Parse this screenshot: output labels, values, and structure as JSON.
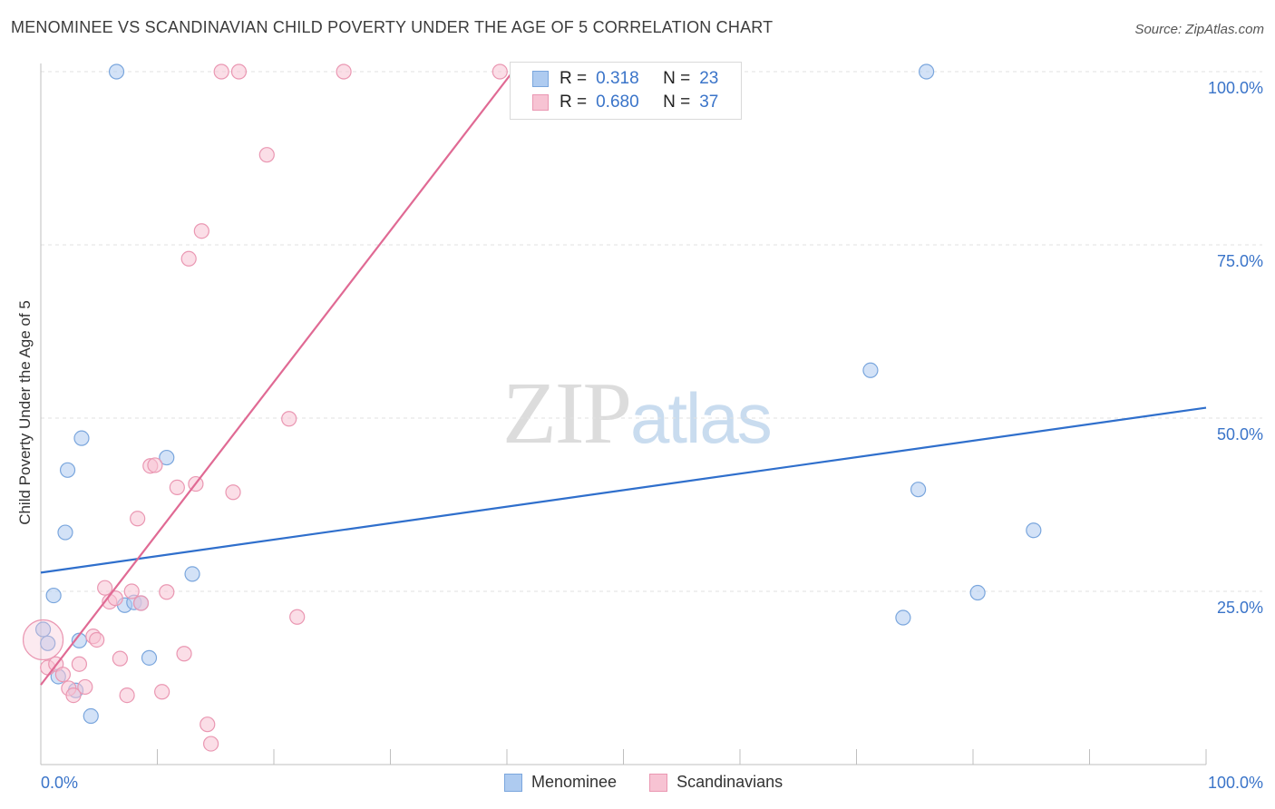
{
  "header": {
    "title": "MENOMINEE VS SCANDINAVIAN CHILD POVERTY UNDER THE AGE OF 5 CORRELATION CHART",
    "source": "Source: ZipAtlas.com"
  },
  "watermark": {
    "zip": "ZIP",
    "atlas": "atlas"
  },
  "legend": {
    "rows": [
      {
        "r_label": "R =",
        "r_value": "0.318",
        "n_label": "N =",
        "n_value": "23"
      },
      {
        "r_label": "R =",
        "r_value": "0.680",
        "n_label": "N =",
        "n_value": "37"
      }
    ],
    "bottom": [
      "Menominee",
      "Scandinavians"
    ]
  },
  "colors": {
    "menominee_fill": "#aecbf0",
    "menominee_stroke": "#7aa6dd",
    "menominee_line": "#2f6fcc",
    "scandinavian_fill": "#f7c3d3",
    "scandinavian_stroke": "#ea97b2",
    "scandinavian_line": "#e06a94",
    "grid": "#e2e2e2",
    "tick_text": "#3a74c9"
  },
  "chart_data": {
    "type": "scatter",
    "title": "MENOMINEE VS SCANDINAVIAN CHILD POVERTY UNDER THE AGE OF 5 CORRELATION CHART",
    "xlabel": "",
    "ylabel": "Child Poverty Under the Age of 5",
    "xlim": [
      0,
      100
    ],
    "ylim": [
      0,
      100
    ],
    "x_tick_labels": [
      "0.0%",
      "100.0%"
    ],
    "y_ticks": [
      25,
      50,
      75,
      100
    ],
    "y_tick_labels": [
      "25.0%",
      "50.0%",
      "75.0%",
      "100.0%"
    ],
    "series": [
      {
        "name": "Menominee",
        "R": 0.318,
        "N": 23,
        "trend": {
          "x": [
            0,
            100
          ],
          "y": [
            27.7,
            51.5
          ]
        },
        "points": [
          {
            "x": 0.2,
            "y": 19.5
          },
          {
            "x": 0.6,
            "y": 17.5
          },
          {
            "x": 1.1,
            "y": 24.4
          },
          {
            "x": 1.5,
            "y": 12.7
          },
          {
            "x": 2.1,
            "y": 33.5
          },
          {
            "x": 2.3,
            "y": 42.5
          },
          {
            "x": 3.0,
            "y": 10.7
          },
          {
            "x": 3.3,
            "y": 17.9
          },
          {
            "x": 3.5,
            "y": 47.1
          },
          {
            "x": 4.3,
            "y": 7.0
          },
          {
            "x": 6.5,
            "y": 100
          },
          {
            "x": 7.2,
            "y": 23.0
          },
          {
            "x": 8.0,
            "y": 23.4
          },
          {
            "x": 8.6,
            "y": 23.3
          },
          {
            "x": 9.3,
            "y": 15.4
          },
          {
            "x": 10.8,
            "y": 44.3
          },
          {
            "x": 13.0,
            "y": 27.5
          },
          {
            "x": 71.2,
            "y": 56.9
          },
          {
            "x": 74.0,
            "y": 21.2
          },
          {
            "x": 75.3,
            "y": 39.7
          },
          {
            "x": 76.0,
            "y": 100
          },
          {
            "x": 80.4,
            "y": 24.8
          },
          {
            "x": 85.2,
            "y": 33.8
          }
        ]
      },
      {
        "name": "Scandinavians",
        "R": 0.68,
        "N": 37,
        "trend": {
          "x": [
            0,
            40.5
          ],
          "y": [
            11.5,
            100
          ]
        },
        "points": [
          {
            "x": 0.2,
            "y": 18.0,
            "large": true
          },
          {
            "x": 0.6,
            "y": 14.0
          },
          {
            "x": 1.3,
            "y": 14.5
          },
          {
            "x": 1.9,
            "y": 13.0
          },
          {
            "x": 2.4,
            "y": 11.0
          },
          {
            "x": 2.8,
            "y": 10.0
          },
          {
            "x": 3.3,
            "y": 14.5
          },
          {
            "x": 3.8,
            "y": 11.2
          },
          {
            "x": 4.5,
            "y": 18.5
          },
          {
            "x": 4.8,
            "y": 18.0
          },
          {
            "x": 5.5,
            "y": 25.5
          },
          {
            "x": 5.9,
            "y": 23.5
          },
          {
            "x": 6.4,
            "y": 24.0
          },
          {
            "x": 6.8,
            "y": 15.3
          },
          {
            "x": 7.4,
            "y": 10.0
          },
          {
            "x": 7.8,
            "y": 25.0
          },
          {
            "x": 8.3,
            "y": 35.5
          },
          {
            "x": 8.6,
            "y": 23.3
          },
          {
            "x": 9.4,
            "y": 43.1
          },
          {
            "x": 9.8,
            "y": 43.2
          },
          {
            "x": 10.4,
            "y": 10.5
          },
          {
            "x": 10.8,
            "y": 24.9
          },
          {
            "x": 11.7,
            "y": 40.0
          },
          {
            "x": 12.3,
            "y": 16.0
          },
          {
            "x": 12.7,
            "y": 73.0
          },
          {
            "x": 13.3,
            "y": 40.5
          },
          {
            "x": 13.8,
            "y": 77.0
          },
          {
            "x": 14.3,
            "y": 5.8
          },
          {
            "x": 14.6,
            "y": 3.0
          },
          {
            "x": 15.5,
            "y": 100
          },
          {
            "x": 16.5,
            "y": 39.3
          },
          {
            "x": 17.0,
            "y": 100
          },
          {
            "x": 19.4,
            "y": 88.0
          },
          {
            "x": 21.3,
            "y": 49.9
          },
          {
            "x": 22.0,
            "y": 21.3
          },
          {
            "x": 26.0,
            "y": 100
          },
          {
            "x": 39.4,
            "y": 100
          }
        ]
      }
    ]
  }
}
